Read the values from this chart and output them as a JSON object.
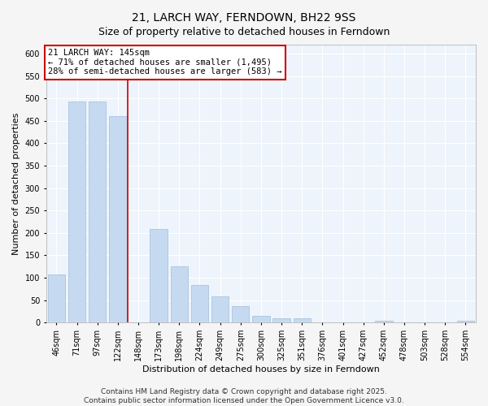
{
  "title": "21, LARCH WAY, FERNDOWN, BH22 9SS",
  "subtitle": "Size of property relative to detached houses in Ferndown",
  "xlabel": "Distribution of detached houses by size in Ferndown",
  "ylabel": "Number of detached properties",
  "bar_labels": [
    "46sqm",
    "71sqm",
    "97sqm",
    "122sqm",
    "148sqm",
    "173sqm",
    "198sqm",
    "224sqm",
    "249sqm",
    "275sqm",
    "300sqm",
    "325sqm",
    "351sqm",
    "376sqm",
    "401sqm",
    "427sqm",
    "452sqm",
    "478sqm",
    "503sqm",
    "528sqm",
    "554sqm"
  ],
  "bar_values": [
    107,
    493,
    493,
    460,
    0,
    208,
    125,
    83,
    58,
    37,
    15,
    10,
    10,
    0,
    0,
    0,
    5,
    0,
    0,
    0,
    5
  ],
  "bar_color": "#c5daf0",
  "bar_edge_color": "#a8c4e0",
  "vline_index": 4,
  "vline_color": "#cc0000",
  "annotation_title": "21 LARCH WAY: 145sqm",
  "annotation_line1": "← 71% of detached houses are smaller (1,495)",
  "annotation_line2": "28% of semi-detached houses are larger (583) →",
  "annotation_box_color": "#ffffff",
  "annotation_box_edge": "#cc0000",
  "ylim": [
    0,
    620
  ],
  "yticks": [
    0,
    50,
    100,
    150,
    200,
    250,
    300,
    350,
    400,
    450,
    500,
    550,
    600
  ],
  "footer_line1": "Contains HM Land Registry data © Crown copyright and database right 2025.",
  "footer_line2": "Contains public sector information licensed under the Open Government Licence v3.0.",
  "bg_color": "#f5f5f5",
  "plot_bg_color": "#eef4fb",
  "grid_color": "#ffffff",
  "title_fontsize": 10,
  "subtitle_fontsize": 9,
  "axis_label_fontsize": 8,
  "tick_fontsize": 7,
  "annotation_fontsize": 7.5,
  "footer_fontsize": 6.5
}
